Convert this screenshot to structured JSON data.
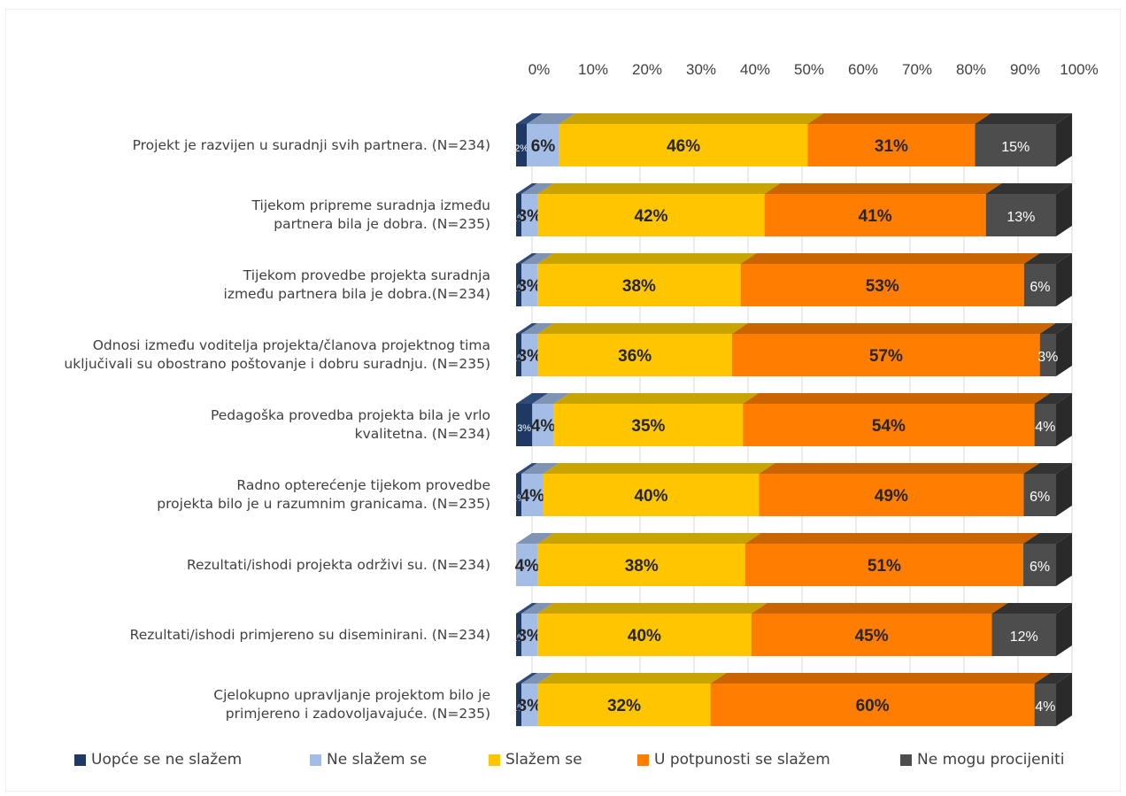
{
  "chart_data": {
    "type": "bar",
    "orientation": "horizontal",
    "stacked": "percent",
    "style": "3d",
    "x_ticks": [
      "0%",
      "10%",
      "20%",
      "30%",
      "40%",
      "50%",
      "60%",
      "70%",
      "80%",
      "90%",
      "100%"
    ],
    "xlim": [
      0,
      100
    ],
    "legend_position": "bottom",
    "categories": [
      "Projekt je razvijen u suradnji svih partnera. (N=234)",
      "Tijekom pripreme suradnja između\npartnera bila je dobra. (N=235)",
      "Tijekom provedbe projekta suradnja\nizmeđu partnera bila je dobra.(N=234)",
      "Odnosi između voditelja projekta/članova projektnog tima\nuključivali su obostrano poštovanje i dobru suradnju. (N=235)",
      "Pedagoška provedba projekta bila je vrlo\nkvalitetna. (N=234)",
      "Radno opterećenje tijekom provedbe\nprojekta bilo je u razumnim granicama. (N=235)",
      "Rezultati/ishodi projekta održivi su. (N=234)",
      "Rezultati/ishodi primjereno su diseminirani. (N=234)",
      "Cjelokupno upravljanje projektom bilo je\nprimjereno i zadovoljavajuće. (N=235)"
    ],
    "series": [
      {
        "name": "Uopće se ne slažem",
        "color": "#1f3864",
        "top_color": "#2e4a7a",
        "values": [
          2,
          1,
          1,
          1,
          3,
          1,
          0,
          1,
          1
        ],
        "labels": [
          "2%",
          "1%",
          "1%",
          "1%",
          "3%",
          "1%",
          "0%",
          "1%",
          "1%"
        ]
      },
      {
        "name": "Ne slažem se",
        "color": "#a4bde6",
        "top_color": "#7f93b5",
        "values": [
          6,
          3,
          3,
          3,
          4,
          4,
          4,
          3,
          3
        ],
        "labels": [
          "6%",
          "3%",
          "3%",
          "3%",
          "4%",
          "4%",
          "4%",
          "3%",
          "3%"
        ]
      },
      {
        "name": "Slažem se",
        "color": "#ffc600",
        "top_color": "#c9a300",
        "values": [
          46,
          42,
          38,
          36,
          35,
          40,
          38,
          40,
          32
        ],
        "labels": [
          "46%",
          "42%",
          "38%",
          "36%",
          "35%",
          "40%",
          "38%",
          "40%",
          "32%"
        ]
      },
      {
        "name": "U potpunosti se slažem",
        "color": "#ff7d00",
        "top_color": "#c96400",
        "values": [
          31,
          41,
          53,
          57,
          54,
          49,
          51,
          45,
          60
        ],
        "labels": [
          "31%",
          "41%",
          "53%",
          "57%",
          "54%",
          "49%",
          "51%",
          "45%",
          "60%"
        ]
      },
      {
        "name": "Ne mogu procijeniti",
        "color": "#4d4d4d",
        "top_color": "#333333",
        "values": [
          15,
          13,
          6,
          3,
          4,
          6,
          6,
          12,
          4
        ],
        "labels": [
          "15%",
          "13%",
          "6%",
          "3%",
          "4%",
          "6%",
          "6%",
          "12%",
          "4%"
        ]
      }
    ]
  }
}
